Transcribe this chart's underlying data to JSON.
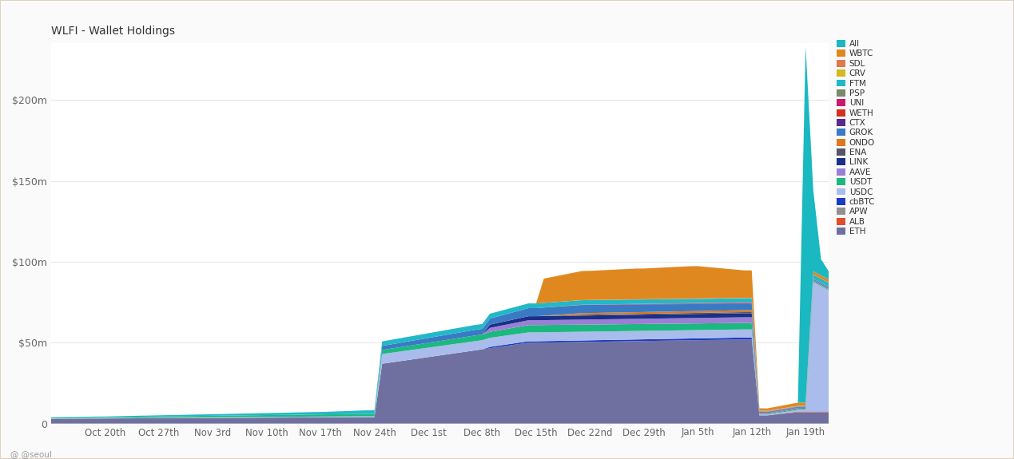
{
  "title": "WLFI - Wallet Holdings",
  "background_color": "#fafafa",
  "plot_background": "#ffffff",
  "x_labels": [
    "Oct 20th",
    "Oct 27th",
    "Nov 3rd",
    "Nov 10th",
    "Nov 17th",
    "Nov 24th",
    "Dec 1st",
    "Dec 8th",
    "Dec 15th",
    "Dec 22nd",
    "Dec 29th",
    "Jan 5th",
    "Jan 12th",
    "Jan 19th"
  ],
  "yticks": [
    0,
    50000000,
    100000000,
    150000000,
    200000000
  ],
  "ytick_labels": [
    "0",
    "$50m",
    "$100m",
    "$150m",
    "$200m"
  ],
  "colors": {
    "ETH": "#7070a0",
    "APW": "#909090",
    "ALB": "#e04e2a",
    "cbBTC": "#1a3bc4",
    "USDC": "#aabcec",
    "USDT": "#1db880",
    "AAVE": "#9b7fd4",
    "LINK": "#1a2f8a",
    "ENA": "#555565",
    "ONDO": "#e07820",
    "GROK": "#3a7ac4",
    "CTX": "#5a2a8a",
    "WETH": "#d43020",
    "UNI": "#cc1a6a",
    "PSP": "#7a8a6a",
    "FTM": "#22b8c8",
    "CRV": "#d4b820",
    "SDL": "#e07850",
    "WBTC": "#e08820",
    "All": "#1ab8c0"
  },
  "legend_order": [
    "All",
    "WBTC",
    "SDL",
    "CRV",
    "FTM",
    "PSP",
    "UNI",
    "WETH",
    "CTX",
    "GROK",
    "ONDO",
    "ENA",
    "LINK",
    "AAVE",
    "USDT",
    "USDC",
    "cbBTC",
    "APW",
    "ALB",
    "ETH"
  ]
}
